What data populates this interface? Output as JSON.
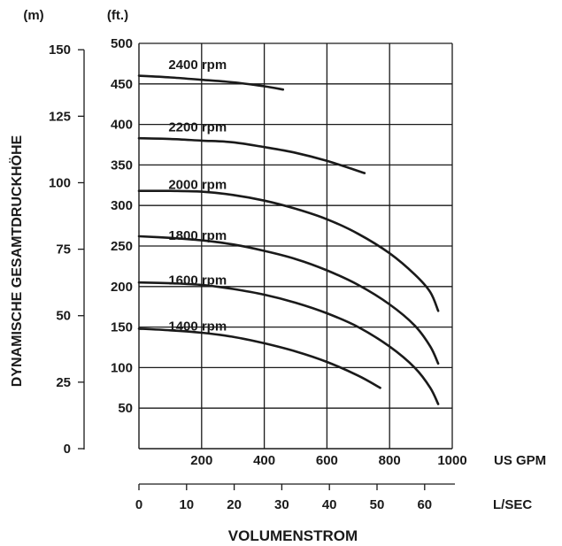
{
  "chart_data": {
    "type": "line",
    "title": "",
    "y_unit_m": "(m)",
    "y_unit_ft": "(ft.)",
    "ylabel": "DYNAMISCHE GESAMTDRUCKHÖHE",
    "xlabel": "VOLUMENSTROM",
    "x_unit_gpm": "US GPM",
    "x_unit_lsec": "L/SEC",
    "ft_ticks": [
      "50",
      "100",
      "150",
      "200",
      "250",
      "300",
      "350",
      "400",
      "450",
      "500"
    ],
    "m_ticks": [
      "0",
      "25",
      "50",
      "75",
      "100",
      "125",
      "150"
    ],
    "gpm_ticks": [
      "200",
      "400",
      "600",
      "800",
      "1000"
    ],
    "lsec_ticks": [
      "0",
      "10",
      "20",
      "30",
      "40",
      "50",
      "60"
    ],
    "xlim_gpm": [
      0,
      1000
    ],
    "ylim_ft": [
      0,
      500
    ],
    "grid": true,
    "series": [
      {
        "name": "2400 rpm",
        "label_gpm": 80,
        "label_ft": 474,
        "x": [
          0,
          100,
          200,
          300,
          400,
          460
        ],
        "y": [
          460,
          458,
          455,
          452,
          447,
          443
        ]
      },
      {
        "name": "2200 rpm",
        "label_gpm": 80,
        "label_ft": 397,
        "x": [
          0,
          100,
          200,
          300,
          400,
          500,
          600,
          720
        ],
        "y": [
          383,
          382,
          380,
          378,
          372,
          365,
          355,
          340
        ]
      },
      {
        "name": "2000 rpm",
        "label_gpm": 80,
        "label_ft": 326,
        "x": [
          0,
          100,
          200,
          300,
          400,
          500,
          600,
          700,
          800,
          880,
          930,
          955
        ],
        "y": [
          318,
          318,
          317,
          313,
          306,
          296,
          283,
          265,
          241,
          215,
          193,
          170
        ]
      },
      {
        "name": "1800 rpm",
        "label_gpm": 80,
        "label_ft": 263,
        "x": [
          0,
          100,
          200,
          300,
          400,
          500,
          600,
          700,
          800,
          880,
          930,
          955
        ],
        "y": [
          262,
          260,
          257,
          252,
          244,
          234,
          220,
          202,
          178,
          152,
          126,
          105
        ]
      },
      {
        "name": "1600 rpm",
        "label_gpm": 80,
        "label_ft": 208,
        "x": [
          0,
          100,
          200,
          300,
          400,
          500,
          600,
          700,
          800,
          880,
          930,
          955
        ],
        "y": [
          205,
          204,
          202,
          197,
          190,
          180,
          167,
          150,
          126,
          100,
          75,
          55
        ]
      },
      {
        "name": "1400 rpm",
        "label_gpm": 80,
        "label_ft": 151,
        "x": [
          0,
          100,
          200,
          300,
          400,
          500,
          600,
          700,
          770
        ],
        "y": [
          148,
          146,
          143,
          138,
          130,
          120,
          107,
          90,
          75
        ]
      }
    ]
  }
}
